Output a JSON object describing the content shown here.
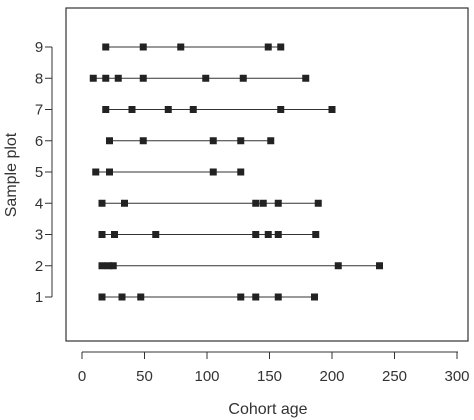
{
  "chart_data": {
    "type": "scatter",
    "xlabel": "Cohort age",
    "ylabel": "Sample plot",
    "xlim": [
      -10,
      300
    ],
    "ylim": [
      0,
      10
    ],
    "x_ticks": [
      0,
      50,
      100,
      150,
      200,
      250,
      300
    ],
    "y_ticks": [
      1,
      2,
      3,
      4,
      5,
      6,
      7,
      8,
      9
    ],
    "x_tick_labels": [
      "0",
      "50",
      "100",
      "150",
      "200",
      "250",
      "300"
    ],
    "y_tick_labels": [
      "1",
      "2",
      "3",
      "4",
      "5",
      "6",
      "7",
      "8",
      "9"
    ],
    "grid": false,
    "legend": "none",
    "marker_color": "#222222",
    "line_color": "#333333",
    "plots": [
      {
        "plot": 1,
        "ages": [
          16,
          32,
          47,
          127,
          139,
          157,
          186
        ]
      },
      {
        "plot": 2,
        "ages": [
          16,
          21,
          25,
          205,
          238
        ]
      },
      {
        "plot": 3,
        "ages": [
          16,
          26,
          59,
          139,
          149,
          157,
          187
        ]
      },
      {
        "plot": 4,
        "ages": [
          16,
          34,
          139,
          145,
          157,
          189
        ]
      },
      {
        "plot": 5,
        "ages": [
          11,
          22,
          105,
          127
        ]
      },
      {
        "plot": 6,
        "ages": [
          22,
          49,
          105,
          127,
          151
        ]
      },
      {
        "plot": 7,
        "ages": [
          19,
          40,
          69,
          89,
          159,
          200
        ]
      },
      {
        "plot": 8,
        "ages": [
          9,
          19,
          29,
          49,
          99,
          129,
          179
        ]
      },
      {
        "plot": 9,
        "ages": [
          19,
          49,
          79,
          149,
          159
        ]
      }
    ]
  }
}
